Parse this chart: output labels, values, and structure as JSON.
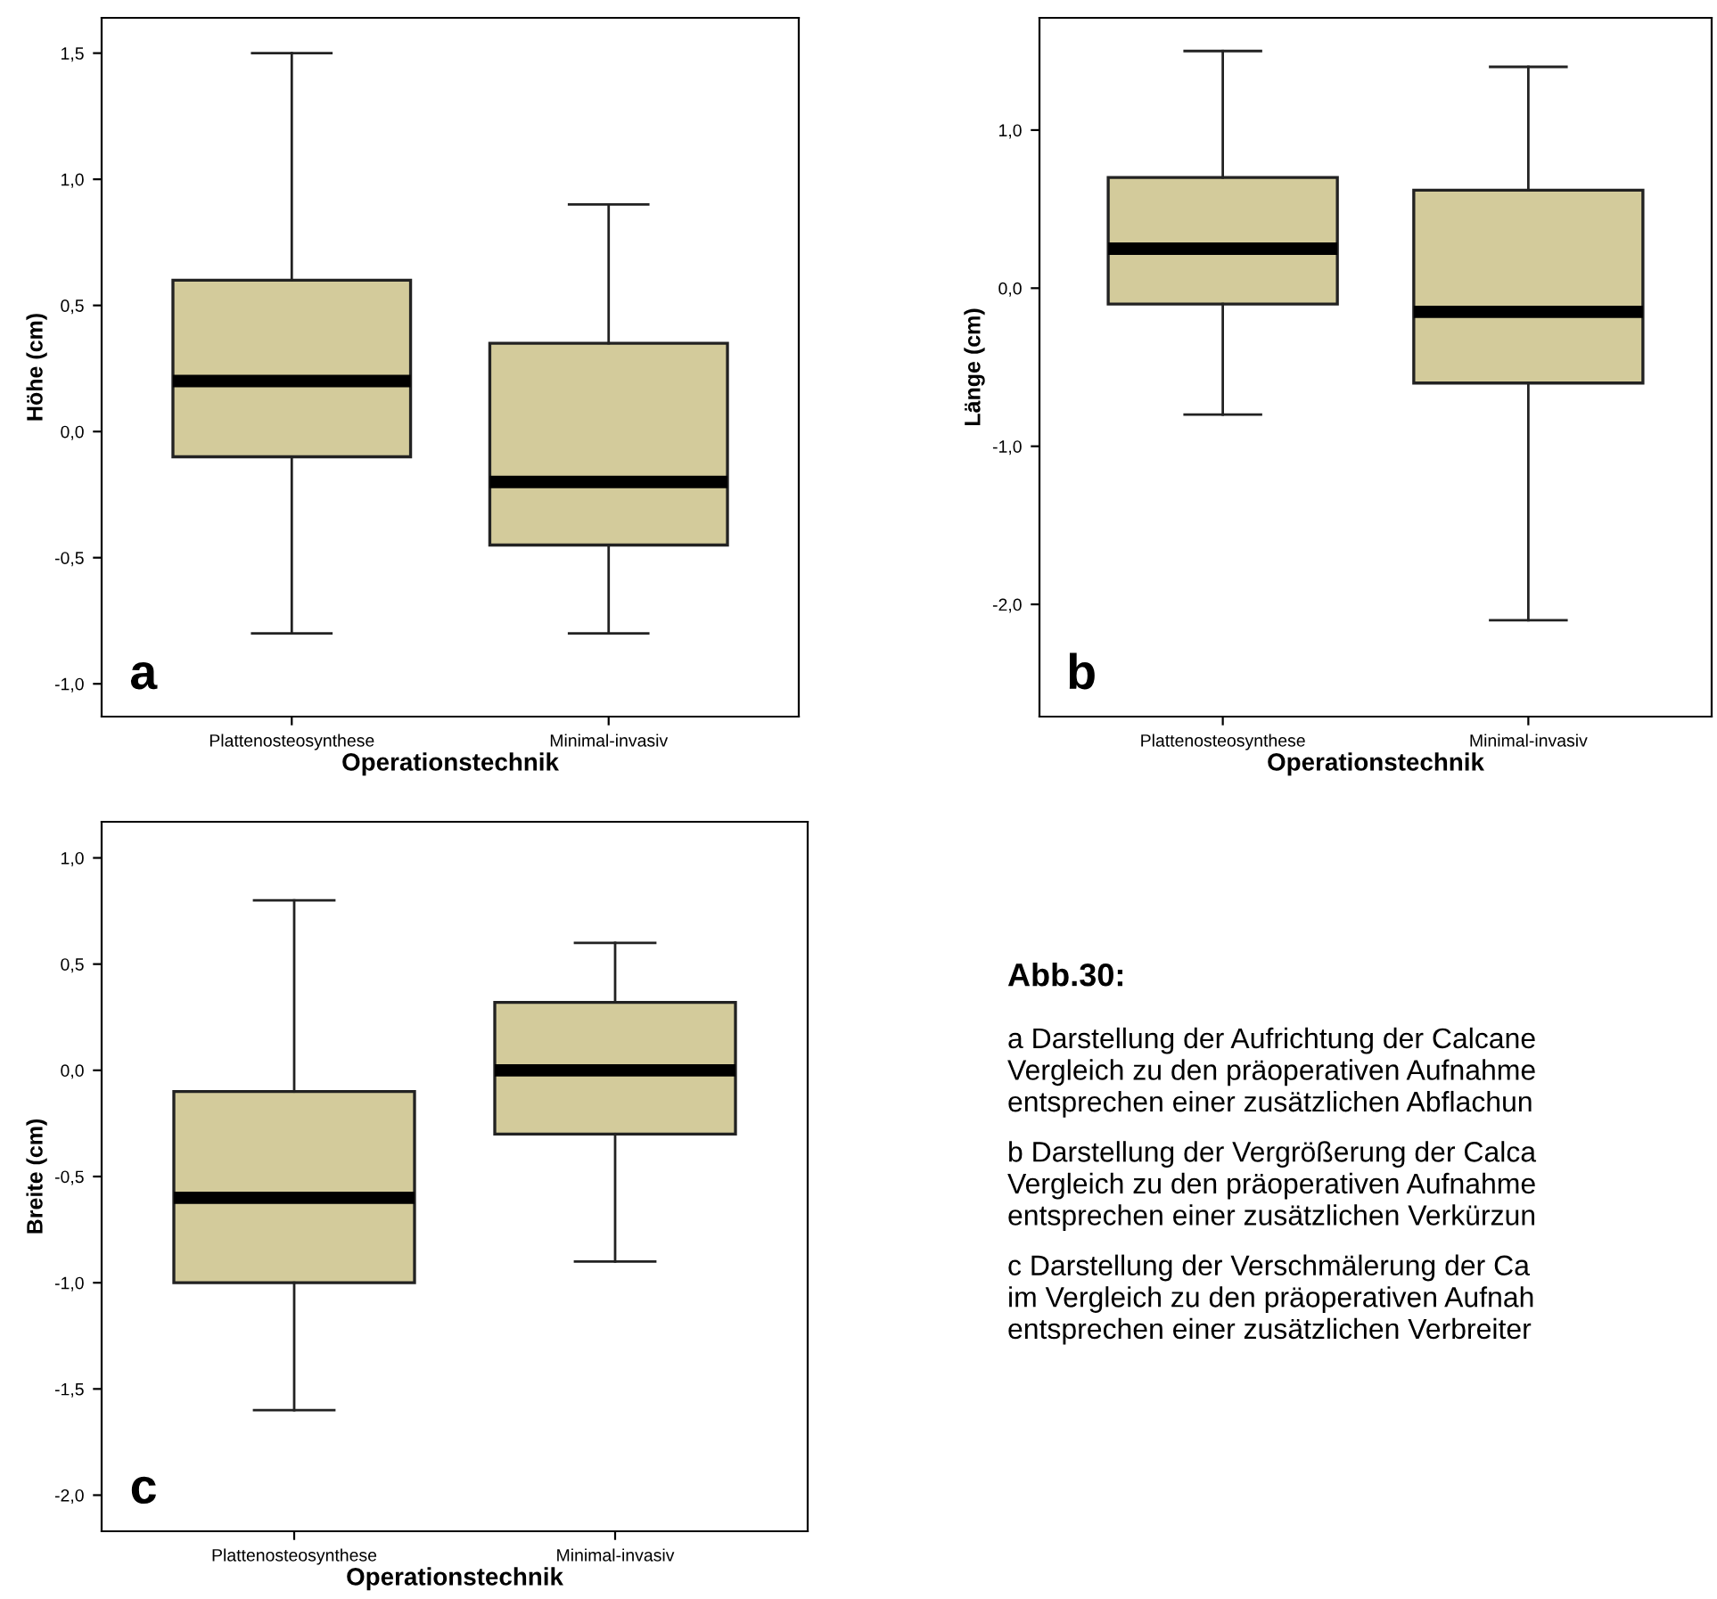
{
  "chart_data": [
    {
      "type": "box",
      "xlabel": "Operationstechnik",
      "ylabel": "Höhe (cm)",
      "categories": [
        "Plattenosteosynthese",
        "Minimal-invasiv"
      ],
      "color": "#d3cb9b",
      "ylim": [
        -1.13,
        1.64
      ],
      "yticks": [
        {
          "value": -1.0,
          "label": "-1,0"
        },
        {
          "value": -0.5,
          "label": "-0,5"
        },
        {
          "value": 0.0,
          "label": "0,0"
        },
        {
          "value": 0.5,
          "label": "0,5"
        },
        {
          "value": 1.0,
          "label": "1,0"
        },
        {
          "value": 1.5,
          "label": "1,5"
        }
      ],
      "annotations": [
        "a"
      ],
      "boxes": [
        {
          "low": -0.8,
          "q1": -0.1,
          "median": 0.2,
          "q3": 0.6,
          "high": 1.5
        },
        {
          "low": -0.8,
          "q1": -0.45,
          "median": -0.2,
          "q3": 0.35,
          "high": 0.9
        }
      ]
    },
    {
      "type": "box",
      "xlabel": "Operationstechnik",
      "ylabel": "Länge (cm)",
      "categories": [
        "Plattenosteosynthese",
        "Minimal-invasiv"
      ],
      "color": "#d3cb9b",
      "ylim": [
        -2.71,
        1.71
      ],
      "yticks": [
        {
          "value": -2.0,
          "label": "-2,0"
        },
        {
          "value": -1.0,
          "label": "-1,0"
        },
        {
          "value": 0.0,
          "label": "0,0"
        },
        {
          "value": 1.0,
          "label": "1,0"
        }
      ],
      "annotations": [
        "b"
      ],
      "boxes": [
        {
          "low": -0.8,
          "q1": -0.1,
          "median": 0.25,
          "q3": 0.7,
          "high": 1.5
        },
        {
          "low": -2.1,
          "q1": -0.6,
          "median": -0.15,
          "q3": 0.62,
          "high": 1.4
        }
      ]
    },
    {
      "type": "box",
      "xlabel": "Operationstechnik",
      "ylabel": "Breite (cm)",
      "categories": [
        "Plattenosteosynthese",
        "Minimal-invasiv"
      ],
      "color": "#d3cb9b",
      "ylim": [
        -2.17,
        1.17
      ],
      "yticks": [
        {
          "value": -2.0,
          "label": "-2,0"
        },
        {
          "value": -1.5,
          "label": "-1,5"
        },
        {
          "value": -1.0,
          "label": "-1,0"
        },
        {
          "value": -0.5,
          "label": "-0,5"
        },
        {
          "value": 0.0,
          "label": "0,0"
        },
        {
          "value": 0.5,
          "label": "0,5"
        },
        {
          "value": 1.0,
          "label": "1,0"
        }
      ],
      "annotations": [
        "c"
      ],
      "boxes": [
        {
          "low": -1.6,
          "q1": -1.0,
          "median": -0.6,
          "q3": -0.1,
          "high": 0.8
        },
        {
          "low": -0.9,
          "q1": -0.3,
          "median": 0.0,
          "q3": 0.32,
          "high": 0.6
        }
      ]
    },
    {
      "type": "other",
      "title": "Abb.30:",
      "annotations": [
        "a Darstellung der Aufrichtung der Calcane\nVergleich zu den präoperativen Aufnahme\nentsprechen einer zusätzlichen Abflachun",
        "b Darstellung der Vergrößerung der Calca\nVergleich zu den präoperativen Aufnahme\nentsprechen einer zusätzlichen Verkürzun",
        "c Darstellung der Verschmälerung der Ca\nim Vergleich zu den präoperativen Aufnah\nentsprechen einer zusätzlichen Verbreiter"
      ]
    }
  ]
}
